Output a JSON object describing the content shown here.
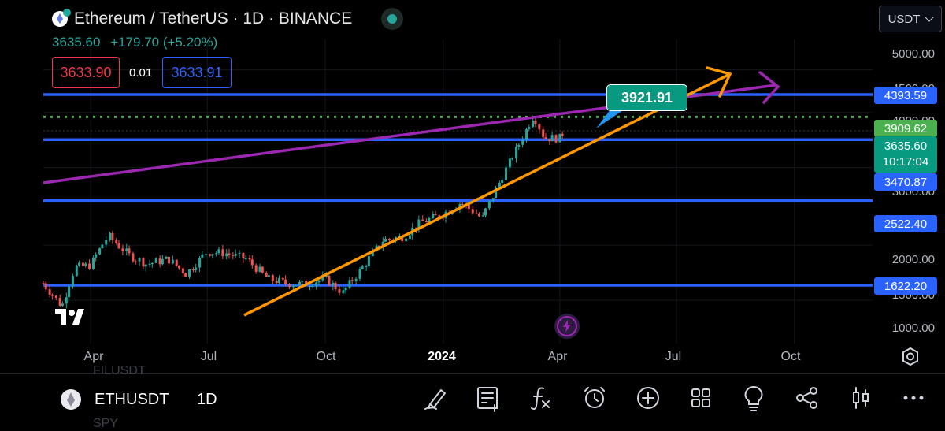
{
  "header": {
    "title": "Ethereum / TetherUS · 1D · BINANCE",
    "last_price": "3635.60",
    "change": "+179.70 (+5.20%)",
    "sell_price": "3633.90",
    "spread": "0.01",
    "buy_price": "3633.91",
    "currency_selector": "USDT"
  },
  "axis": {
    "price_ticks": [
      "5000.00",
      "4500.00",
      "4000.00",
      "3000.00",
      "2000.00",
      "1500.00",
      "1000.00"
    ],
    "time_ticks": [
      "Apr",
      "Jul",
      "Oct",
      "2024",
      "Apr",
      "Jul",
      "Oct"
    ]
  },
  "price_levels": {
    "level1": "4393.59",
    "level2": "3909.62",
    "level3": "3470.87",
    "level4": "2522.40",
    "level5": "1622.20"
  },
  "current_price_tag": {
    "price": "3635.60",
    "countdown": "10:17:04"
  },
  "callout_label": "3921.91",
  "bottom_bar": {
    "symbol": "ETHUSDT",
    "timeframe": "1D",
    "ghost_top": "FILUSDT",
    "ghost_bottom": "SPY"
  },
  "colors": {
    "level_line": "#2962ff",
    "trend_orange": "#ff9800",
    "trend_purple": "#9c27b0",
    "up_candle": "#26a69a",
    "down_candle": "#ef5350",
    "target_dotted": "#4caf50"
  },
  "chart_data": {
    "type": "candlestick",
    "symbol": "ETHUSDT",
    "interval": "1D",
    "ylim": [
      800,
      5300
    ],
    "scale": "log",
    "x_range": [
      "2023-02-23",
      "2024-12-01"
    ],
    "series": [
      {
        "x": [
          "2023-02-23",
          "2023-03-10",
          "2023-03-20",
          "2023-04-01",
          "2023-04-15",
          "2023-05-01",
          "2023-05-15",
          "2023-06-01",
          "2023-06-15",
          "2023-07-01",
          "2023-07-15",
          "2023-08-01",
          "2023-08-17",
          "2023-09-01",
          "2023-09-15",
          "2023-10-01",
          "2023-10-15",
          "2023-11-01",
          "2023-11-15",
          "2023-12-01",
          "2023-12-15",
          "2024-01-01",
          "2024-01-15",
          "2024-02-01",
          "2024-02-15",
          "2024-03-01",
          "2024-03-12",
          "2024-03-20",
          "2024-04-01",
          "2024-04-05"
        ],
        "values": [
          1640,
          1450,
          1780,
          1800,
          2100,
          1900,
          1810,
          1860,
          1720,
          1930,
          1920,
          1860,
          1680,
          1640,
          1630,
          1680,
          1560,
          1800,
          2050,
          2090,
          2250,
          2350,
          2500,
          2300,
          2800,
          3400,
          3950,
          3500,
          3500,
          3635
        ]
      }
    ]
  }
}
